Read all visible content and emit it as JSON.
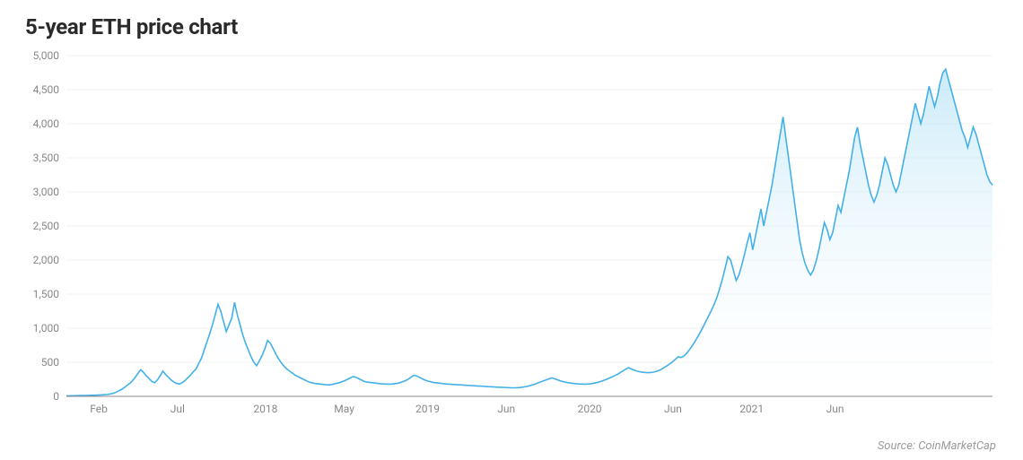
{
  "title": "5-year ETH price chart",
  "source_label": "Source: CoinMarketCap",
  "chart": {
    "type": "area",
    "background_color": "#ffffff",
    "grid_color": "#f2f2f2",
    "axis_color": "#888888",
    "label_color": "#888888",
    "line_color": "#43b0e8",
    "fill_top_color": "#a1daf4",
    "fill_top_opacity": 0.55,
    "fill_bottom_color": "#ffffff",
    "fill_bottom_opacity": 0.05,
    "line_width": 1.6,
    "title_fontsize": 24,
    "label_fontsize": 12,
    "ylim": [
      0,
      5000
    ],
    "ytick_step": 500,
    "yticks": [
      0,
      500,
      1000,
      1500,
      2000,
      2500,
      3000,
      3500,
      4000,
      4500,
      5000
    ],
    "ytick_labels": [
      "0",
      "500",
      "1,000",
      "1,500",
      "2,000",
      "2,500",
      "3,000",
      "3,500",
      "4,000",
      "4,500",
      "5,000"
    ],
    "xtick_positions": [
      0.035,
      0.12,
      0.215,
      0.3,
      0.39,
      0.475,
      0.565,
      0.655,
      0.74,
      0.83,
      0.92
    ],
    "xtick_labels": [
      "Feb",
      "Jul",
      "2018",
      "May",
      "2019",
      "Jun",
      "2020",
      "Jun",
      "2021",
      "Jun",
      ""
    ],
    "series": [
      8,
      8,
      9,
      10,
      11,
      12,
      12,
      13,
      14,
      15,
      16,
      18,
      20,
      22,
      25,
      28,
      35,
      45,
      60,
      80,
      100,
      130,
      160,
      190,
      230,
      280,
      340,
      390,
      350,
      300,
      260,
      220,
      200,
      240,
      300,
      370,
      320,
      280,
      240,
      210,
      190,
      180,
      200,
      230,
      270,
      310,
      360,
      400,
      480,
      560,
      680,
      800,
      920,
      1050,
      1200,
      1350,
      1250,
      1100,
      950,
      1050,
      1150,
      1380,
      1200,
      1050,
      900,
      780,
      680,
      580,
      500,
      450,
      520,
      600,
      700,
      820,
      780,
      700,
      620,
      550,
      490,
      440,
      400,
      370,
      340,
      310,
      290,
      270,
      250,
      230,
      210,
      200,
      190,
      185,
      180,
      175,
      170,
      168,
      172,
      180,
      190,
      200,
      215,
      230,
      250,
      270,
      290,
      280,
      260,
      240,
      220,
      210,
      205,
      200,
      195,
      190,
      185,
      182,
      180,
      178,
      180,
      185,
      190,
      200,
      215,
      230,
      250,
      280,
      310,
      300,
      280,
      260,
      240,
      225,
      215,
      205,
      200,
      195,
      190,
      185,
      180,
      178,
      175,
      172,
      170,
      168,
      165,
      162,
      160,
      158,
      155,
      152,
      150,
      148,
      145,
      142,
      140,
      138,
      136,
      134,
      132,
      130,
      128,
      126,
      125,
      126,
      128,
      132,
      138,
      145,
      155,
      168,
      180,
      195,
      210,
      225,
      240,
      255,
      270,
      260,
      245,
      230,
      218,
      208,
      200,
      195,
      190,
      185,
      182,
      180,
      178,
      180,
      184,
      190,
      198,
      208,
      220,
      235,
      250,
      268,
      285,
      305,
      325,
      350,
      375,
      400,
      420,
      400,
      385,
      370,
      360,
      355,
      350,
      348,
      350,
      355,
      365,
      380,
      400,
      425,
      450,
      480,
      510,
      545,
      580,
      570,
      590,
      630,
      680,
      740,
      800,
      870,
      940,
      1020,
      1100,
      1180,
      1260,
      1350,
      1450,
      1580,
      1720,
      1880,
      2050,
      2000,
      1850,
      1700,
      1780,
      1920,
      2080,
      2250,
      2400,
      2150,
      2350,
      2550,
      2750,
      2500,
      2700,
      2900,
      3100,
      3350,
      3600,
      3850,
      4100,
      3800,
      3500,
      3200,
      2900,
      2600,
      2300,
      2100,
      1950,
      1850,
      1780,
      1850,
      1980,
      2150,
      2350,
      2550,
      2450,
      2300,
      2400,
      2600,
      2800,
      2700,
      2900,
      3100,
      3300,
      3550,
      3800,
      3950,
      3700,
      3500,
      3300,
      3100,
      2950,
      2850,
      2950,
      3100,
      3300,
      3500,
      3400,
      3250,
      3100,
      3000,
      3100,
      3300,
      3500,
      3700,
      3900,
      4100,
      4300,
      4150,
      4000,
      4150,
      4350,
      4550,
      4400,
      4250,
      4400,
      4600,
      4750,
      4800,
      4650,
      4500,
      4350,
      4200,
      4050,
      3900,
      3800,
      3650,
      3800,
      3950,
      3850,
      3700,
      3550,
      3400,
      3250,
      3150,
      3100
    ]
  }
}
